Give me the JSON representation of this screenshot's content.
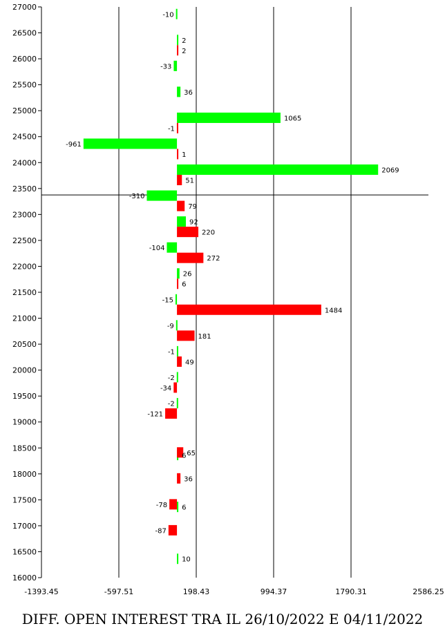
{
  "chart_data": {
    "type": "bar",
    "orientation": "horizontal",
    "title": "DIFF. OPEN INTEREST TRA IL 26/10/2022 E 04/11/2022",
    "ylim": [
      16000,
      27000
    ],
    "xlim": [
      -1393.45,
      2586.25
    ],
    "y_ticks": [
      27000,
      26500,
      26000,
      25500,
      25000,
      24500,
      24000,
      23500,
      23000,
      22500,
      22000,
      21500,
      21000,
      20500,
      20000,
      19500,
      19000,
      18500,
      18000,
      17500,
      17000,
      16500,
      16000
    ],
    "x_ticks": [
      -1393.45,
      -597.51,
      198.43,
      994.37,
      1790.31,
      2586.25
    ],
    "x_tick_labels": [
      "-1393.45",
      "-597.51",
      "198.43",
      "994.37",
      "1790.31",
      "2586.25"
    ],
    "reference_strike": 23250,
    "series": [
      {
        "color": "#00ff00",
        "points": [
          {
            "strike": 26750,
            "value": -10
          },
          {
            "strike": 26250,
            "value": 2
          },
          {
            "strike": 25750,
            "value": -33
          },
          {
            "strike": 25250,
            "value": 36
          },
          {
            "strike": 24750,
            "value": 1065
          },
          {
            "strike": 24250,
            "value": -961
          },
          {
            "strike": 23750,
            "value": 2069
          },
          {
            "strike": 23250,
            "value": -310
          },
          {
            "strike": 22750,
            "value": 92
          },
          {
            "strike": 22250,
            "value": -104
          },
          {
            "strike": 21750,
            "value": 26
          },
          {
            "strike": 21250,
            "value": -15
          },
          {
            "strike": 20750,
            "value": -9
          },
          {
            "strike": 20250,
            "value": -1
          },
          {
            "strike": 19750,
            "value": -2
          },
          {
            "strike": 19250,
            "value": -2
          },
          {
            "strike": 18250,
            "value": 6
          },
          {
            "strike": 17250,
            "value": 6
          },
          {
            "strike": 16250,
            "value": 10
          }
        ]
      },
      {
        "color": "#ff0000",
        "points": [
          {
            "strike": 26250,
            "value": 2
          },
          {
            "strike": 24750,
            "value": -1
          },
          {
            "strike": 24250,
            "value": 1
          },
          {
            "strike": 23750,
            "value": 51
          },
          {
            "strike": 23250,
            "value": 79
          },
          {
            "strike": 22750,
            "value": 220
          },
          {
            "strike": 22250,
            "value": 272
          },
          {
            "strike": 21750,
            "value": 6
          },
          {
            "strike": 21250,
            "value": 1484
          },
          {
            "strike": 20750,
            "value": 181
          },
          {
            "strike": 20250,
            "value": 49
          },
          {
            "strike": 19750,
            "value": -34
          },
          {
            "strike": 19250,
            "value": -121
          },
          {
            "strike": 18500,
            "value": 65
          },
          {
            "strike": 18000,
            "value": 36
          },
          {
            "strike": 17500,
            "value": -78
          },
          {
            "strike": 17000,
            "value": -87
          }
        ]
      }
    ]
  }
}
